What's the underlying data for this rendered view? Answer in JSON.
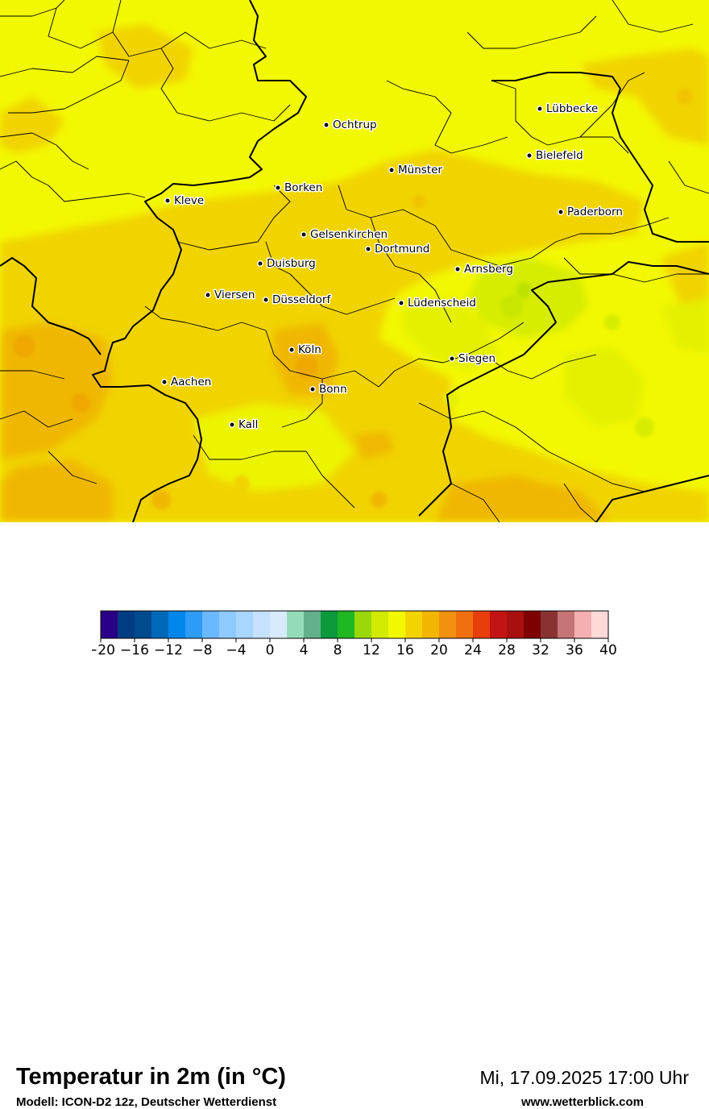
{
  "title": "Temperatur in 2m (in °C)",
  "model": "Modell: ICON-D2 12z, Deutscher Wetterdienst",
  "valid_time": "Mi, 17.09.2025 17:00 Uhr",
  "website": "www.wetterblick.com",
  "colors": {
    "base": "#f2f800",
    "warm": "#f1d300",
    "warmer": "#f0b700",
    "cool": "#d4ec00",
    "border": "#000000"
  },
  "cities": [
    {
      "id": "luebbecke",
      "name": "Lübbecke"
    },
    {
      "id": "ochtrup",
      "name": "Ochtrup"
    },
    {
      "id": "bielefeld",
      "name": "Bielefeld"
    },
    {
      "id": "muenster",
      "name": "Münster"
    },
    {
      "id": "borken",
      "name": "Borken"
    },
    {
      "id": "kleve",
      "name": "Kleve"
    },
    {
      "id": "paderborn",
      "name": "Paderborn"
    },
    {
      "id": "gelsenkirchen",
      "name": "Gelsenkirchen"
    },
    {
      "id": "dortmund",
      "name": "Dortmund"
    },
    {
      "id": "duisburg",
      "name": "Duisburg"
    },
    {
      "id": "arnsberg",
      "name": "Arnsberg"
    },
    {
      "id": "viersen",
      "name": "Viersen"
    },
    {
      "id": "duesseldorf",
      "name": "Düsseldorf"
    },
    {
      "id": "luedenscheid",
      "name": "Lüdenscheid"
    },
    {
      "id": "koeln",
      "name": "Köln"
    },
    {
      "id": "siegen",
      "name": "Siegen"
    },
    {
      "id": "aachen",
      "name": "Aachen"
    },
    {
      "id": "bonn",
      "name": "Bonn"
    },
    {
      "id": "kall",
      "name": "Kall"
    }
  ],
  "legend": {
    "colors": [
      "#2a0088",
      "#003c82",
      "#004a8e",
      "#0068b8",
      "#0086ea",
      "#2c9cf7",
      "#6ab8ff",
      "#8ecaff",
      "#a8d6ff",
      "#c4e2ff",
      "#d8eafd",
      "#94dcb8",
      "#62b08c",
      "#0c9a3c",
      "#20b820",
      "#9ad80a",
      "#d2ea00",
      "#f2f800",
      "#f4d400",
      "#f2b600",
      "#f29010",
      "#f07010",
      "#e83e0c",
      "#c21414",
      "#a81010",
      "#7e0000",
      "#8a3232",
      "#c47474",
      "#f4b0b0",
      "#ffd8d8"
    ],
    "ticks": [
      "−20",
      "−16",
      "−12",
      "−8",
      "−4",
      "0",
      "4",
      "8",
      "12",
      "16",
      "20",
      "24",
      "28",
      "32",
      "36",
      "40"
    ]
  }
}
